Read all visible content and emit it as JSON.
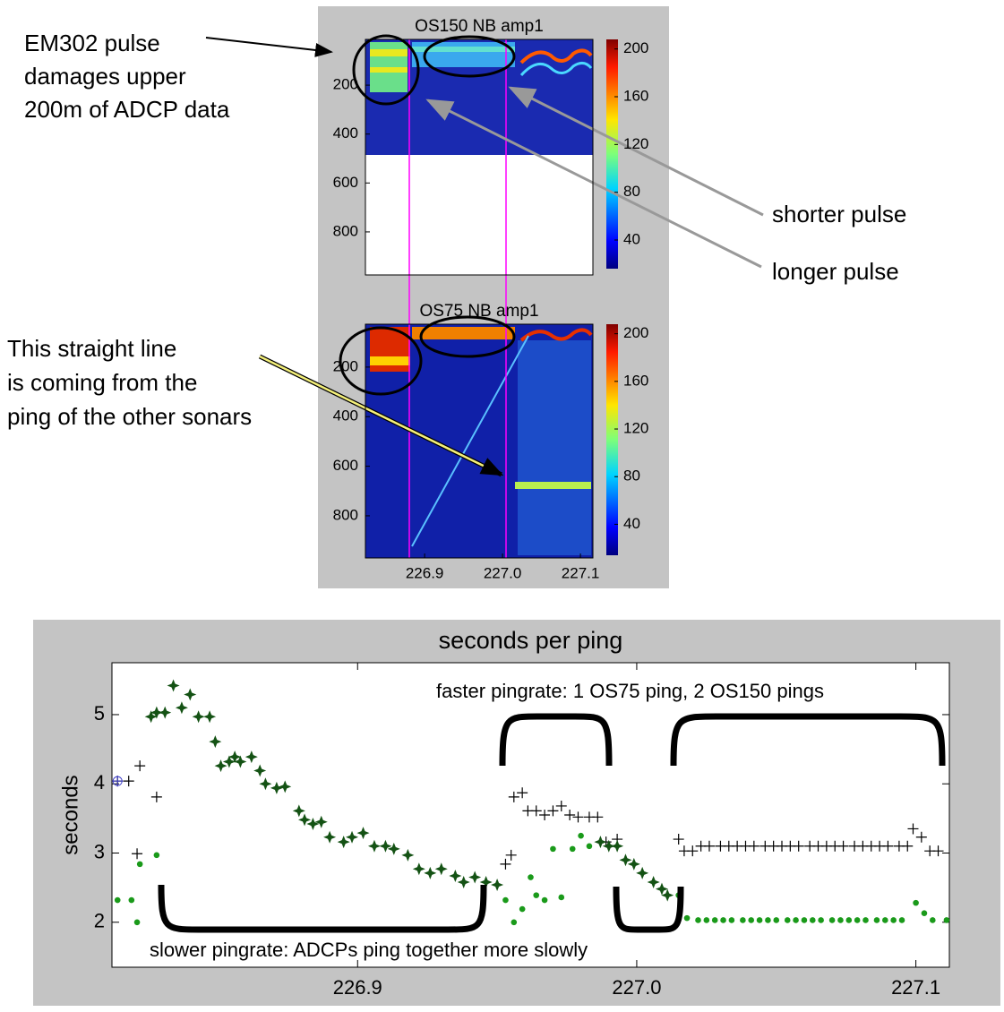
{
  "chart_data": [
    {
      "type": "heatmap",
      "title": "OS150 NB amp1",
      "xlim": [
        226.824,
        227.116
      ],
      "ylim": [
        976,
        13
      ],
      "yticks": [
        200,
        400,
        600,
        800
      ],
      "colorbar": {
        "lim": [
          16,
          208
        ],
        "ticks": [
          200,
          160,
          120,
          80,
          40
        ]
      }
    },
    {
      "type": "heatmap",
      "title": "OS75 NB amp1",
      "xlim": [
        226.824,
        227.116
      ],
      "ylim": [
        970,
        27
      ],
      "yticks": [
        200,
        400,
        600,
        800
      ],
      "xticks": [
        226.9,
        {
          "value": 227.0,
          "label": "227.0"
        },
        227.1
      ],
      "colorbar": {
        "lim": [
          14,
          208
        ],
        "ticks": [
          200,
          160,
          120,
          80,
          40
        ]
      }
    },
    {
      "type": "scatter",
      "title": "seconds per ping",
      "ylabel": "seconds",
      "xlim": [
        226.812,
        227.112
      ],
      "ylim": [
        1.35,
        5.75
      ],
      "xticks": [
        226.9,
        {
          "value": 227.0,
          "label": "227.0"
        },
        227.1
      ],
      "yticks": [
        2,
        3,
        4,
        5
      ],
      "annotations": [
        "faster pingrate: 1 OS75 ping, 2 OS150 pings",
        "slower pingrate: ADCPs ping together more slowly"
      ],
      "series": [
        {
          "color": "#000000",
          "marker": "plus",
          "x": [
            226.814,
            226.818,
            226.822,
            226.828,
            226.821,
            226.953,
            226.955,
            226.956,
            226.959,
            226.961,
            226.964,
            226.967,
            226.97,
            226.973,
            226.976,
            226.979,
            226.983,
            226.986,
            226.989,
            226.993,
            227.015,
            227.017,
            227.02,
            227.023,
            227.026,
            227.03,
            227.033,
            227.036,
            227.039,
            227.042,
            227.046,
            227.049,
            227.052,
            227.055,
            227.058,
            227.062,
            227.065,
            227.068,
            227.071,
            227.074,
            227.078,
            227.081,
            227.084,
            227.087,
            227.09,
            227.094,
            227.097,
            227.099,
            227.102,
            227.105,
            227.108
          ],
          "values": [
            4.04,
            4.04,
            4.26,
            3.81,
            2.99,
            2.84,
            2.97,
            3.81,
            3.87,
            3.61,
            3.61,
            3.55,
            3.61,
            3.68,
            3.55,
            3.52,
            3.52,
            3.52,
            3.16,
            3.2,
            3.2,
            3.03,
            3.03,
            3.1,
            3.1,
            3.1,
            3.1,
            3.1,
            3.1,
            3.1,
            3.1,
            3.1,
            3.1,
            3.1,
            3.1,
            3.1,
            3.1,
            3.1,
            3.1,
            3.1,
            3.1,
            3.1,
            3.1,
            3.1,
            3.1,
            3.1,
            3.1,
            3.35,
            3.23,
            3.03,
            3.03
          ]
        },
        {
          "color": "#1a9a1a",
          "marker": "dot",
          "x": [
            226.814,
            226.819,
            226.821,
            226.822,
            226.828,
            226.953,
            226.956,
            226.959,
            226.962,
            226.964,
            226.967,
            226.97,
            226.973,
            226.977,
            226.98,
            226.983,
            227.015,
            227.018,
            227.022,
            227.025,
            227.028,
            227.031,
            227.034,
            227.038,
            227.041,
            227.044,
            227.047,
            227.05,
            227.054,
            227.057,
            227.06,
            227.063,
            227.066,
            227.07,
            227.073,
            227.076,
            227.079,
            227.082,
            227.086,
            227.089,
            227.092,
            227.095,
            227.1,
            227.103,
            227.106,
            227.111
          ],
          "values": [
            2.32,
            2.32,
            2.0,
            2.84,
            2.97,
            2.32,
            2.0,
            2.19,
            2.65,
            2.39,
            2.32,
            3.06,
            2.36,
            3.06,
            3.25,
            3.1,
            2.39,
            2.06,
            2.03,
            2.03,
            2.03,
            2.03,
            2.03,
            2.03,
            2.03,
            2.03,
            2.03,
            2.03,
            2.03,
            2.03,
            2.03,
            2.03,
            2.03,
            2.03,
            2.03,
            2.03,
            2.03,
            2.03,
            2.03,
            2.03,
            2.03,
            2.03,
            2.28,
            2.13,
            2.03,
            2.03
          ]
        },
        {
          "color": "#145214",
          "marker": "star",
          "x": [
            226.826,
            226.828,
            226.831,
            226.834,
            226.837,
            226.84,
            226.843,
            226.847,
            226.849,
            226.851,
            226.854,
            226.856,
            226.858,
            226.862,
            226.865,
            226.867,
            226.871,
            226.874,
            226.879,
            226.881,
            226.884,
            226.887,
            226.89,
            226.895,
            226.898,
            226.902,
            226.906,
            226.91,
            226.913,
            226.918,
            226.922,
            226.926,
            226.93,
            226.935,
            226.938,
            226.942,
            226.946,
            226.95,
            226.987,
            226.99,
            226.993,
            226.996,
            226.999,
            227.002,
            227.006,
            227.009,
            227.011
          ],
          "values": [
            4.97,
            5.03,
            5.03,
            5.42,
            5.1,
            5.29,
            4.97,
            4.97,
            4.61,
            4.26,
            4.32,
            4.39,
            4.32,
            4.39,
            4.19,
            4.0,
            3.94,
            3.96,
            3.61,
            3.48,
            3.42,
            3.45,
            3.23,
            3.16,
            3.23,
            3.29,
            3.1,
            3.1,
            3.06,
            2.97,
            2.77,
            2.71,
            2.77,
            2.67,
            2.58,
            2.65,
            2.58,
            2.54,
            3.16,
            3.1,
            3.1,
            2.9,
            2.84,
            2.71,
            2.58,
            2.48,
            2.39
          ]
        },
        {
          "color": "#4444cc",
          "marker": "circleplus",
          "x": [
            226.814
          ],
          "values": [
            4.04
          ]
        }
      ]
    }
  ],
  "annotations": {
    "em302": [
      "EM302 pulse",
      "damages upper",
      "200m of ADCP data"
    ],
    "straight": [
      "This straight line",
      "is coming from the",
      "ping of the other sonars"
    ],
    "shorter": "shorter pulse",
    "longer": "longer pulse"
  }
}
